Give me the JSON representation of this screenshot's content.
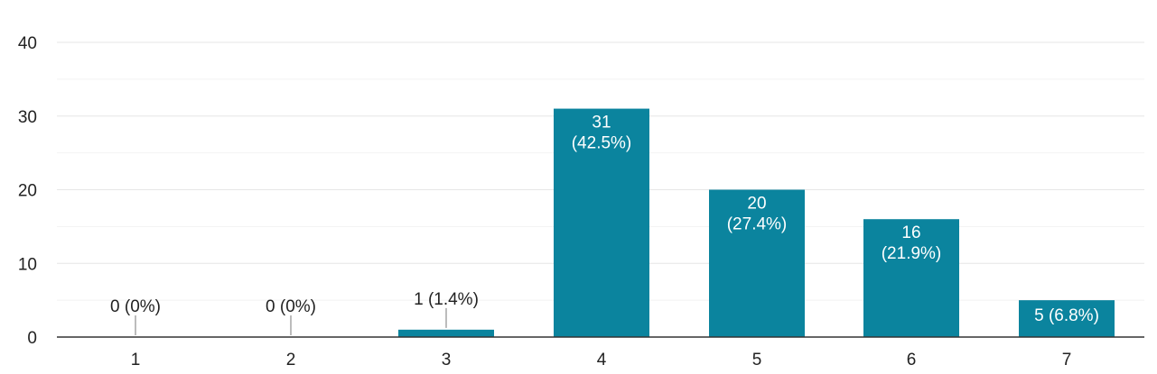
{
  "chart_data": {
    "type": "bar",
    "categories": [
      "1",
      "2",
      "3",
      "4",
      "5",
      "6",
      "7"
    ],
    "values": [
      0,
      0,
      1,
      31,
      20,
      16,
      5
    ],
    "data_labels": [
      [
        "0 (0%)"
      ],
      [
        "0 (0%)"
      ],
      [
        "1 (1.4%)"
      ],
      [
        "31",
        "(42.5%)"
      ],
      [
        "20",
        "(27.4%)"
      ],
      [
        "16",
        "(21.9%)"
      ],
      [
        "5 (6.8%)"
      ]
    ],
    "ylim": [
      0,
      40
    ],
    "yticks": [
      "0",
      "10",
      "20",
      "30",
      "40"
    ],
    "title": "",
    "xlabel": "",
    "ylabel": "",
    "grid": true,
    "bar_color": "#0b849e",
    "gridline_color": "#e6e6e6",
    "axis_color": "#333333",
    "inside_label_color": "#ffffff",
    "outside_label_color": "#222222"
  }
}
